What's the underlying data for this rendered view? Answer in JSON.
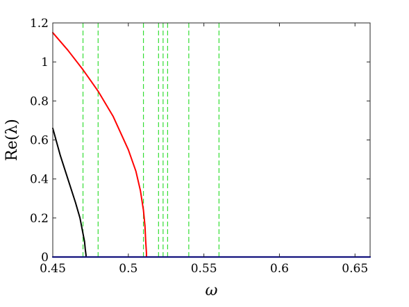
{
  "chart_data": {
    "type": "line",
    "xlabel": "ω",
    "ylabel": "Re(λ)",
    "xlim": [
      0.45,
      0.66
    ],
    "ylim": [
      0,
      1.2
    ],
    "x_ticks": [
      0.45,
      0.5,
      0.55,
      0.6,
      0.65
    ],
    "x_tick_labels": [
      "0.45",
      "0.5",
      "0.55",
      "0.6",
      "0.65"
    ],
    "y_ticks": [
      0,
      0.2,
      0.4,
      0.6,
      0.8,
      1,
      1.2
    ],
    "y_tick_labels": [
      "0",
      "0.2",
      "0.4",
      "0.6",
      "0.8",
      "1",
      "1.2"
    ],
    "grid": false,
    "legend": "none",
    "series": [
      {
        "color": "#ff0000",
        "style": "solid",
        "x": [
          0.45,
          0.46,
          0.47,
          0.48,
          0.49,
          0.5,
          0.505,
          0.508,
          0.51,
          0.511,
          0.5115,
          0.512,
          0.512
        ],
        "y": [
          1.15,
          1.06,
          0.96,
          0.85,
          0.72,
          0.55,
          0.44,
          0.34,
          0.24,
          0.16,
          0.08,
          0.02,
          0
        ]
      },
      {
        "color": "#000000",
        "style": "solid",
        "x": [
          0.45,
          0.455,
          0.46,
          0.465,
          0.468,
          0.47,
          0.471,
          0.4715,
          0.472,
          0.472
        ],
        "y": [
          0.66,
          0.52,
          0.4,
          0.28,
          0.2,
          0.12,
          0.08,
          0.04,
          0.01,
          0
        ]
      },
      {
        "color": "#0000cc",
        "style": "solid",
        "x": [
          0.45,
          0.66
        ],
        "y": [
          0,
          0
        ]
      }
    ],
    "vlines": {
      "color": "#33dd33",
      "style": "dashed",
      "x": [
        0.47,
        0.48,
        0.51,
        0.52,
        0.523,
        0.526,
        0.54,
        0.56
      ]
    }
  }
}
